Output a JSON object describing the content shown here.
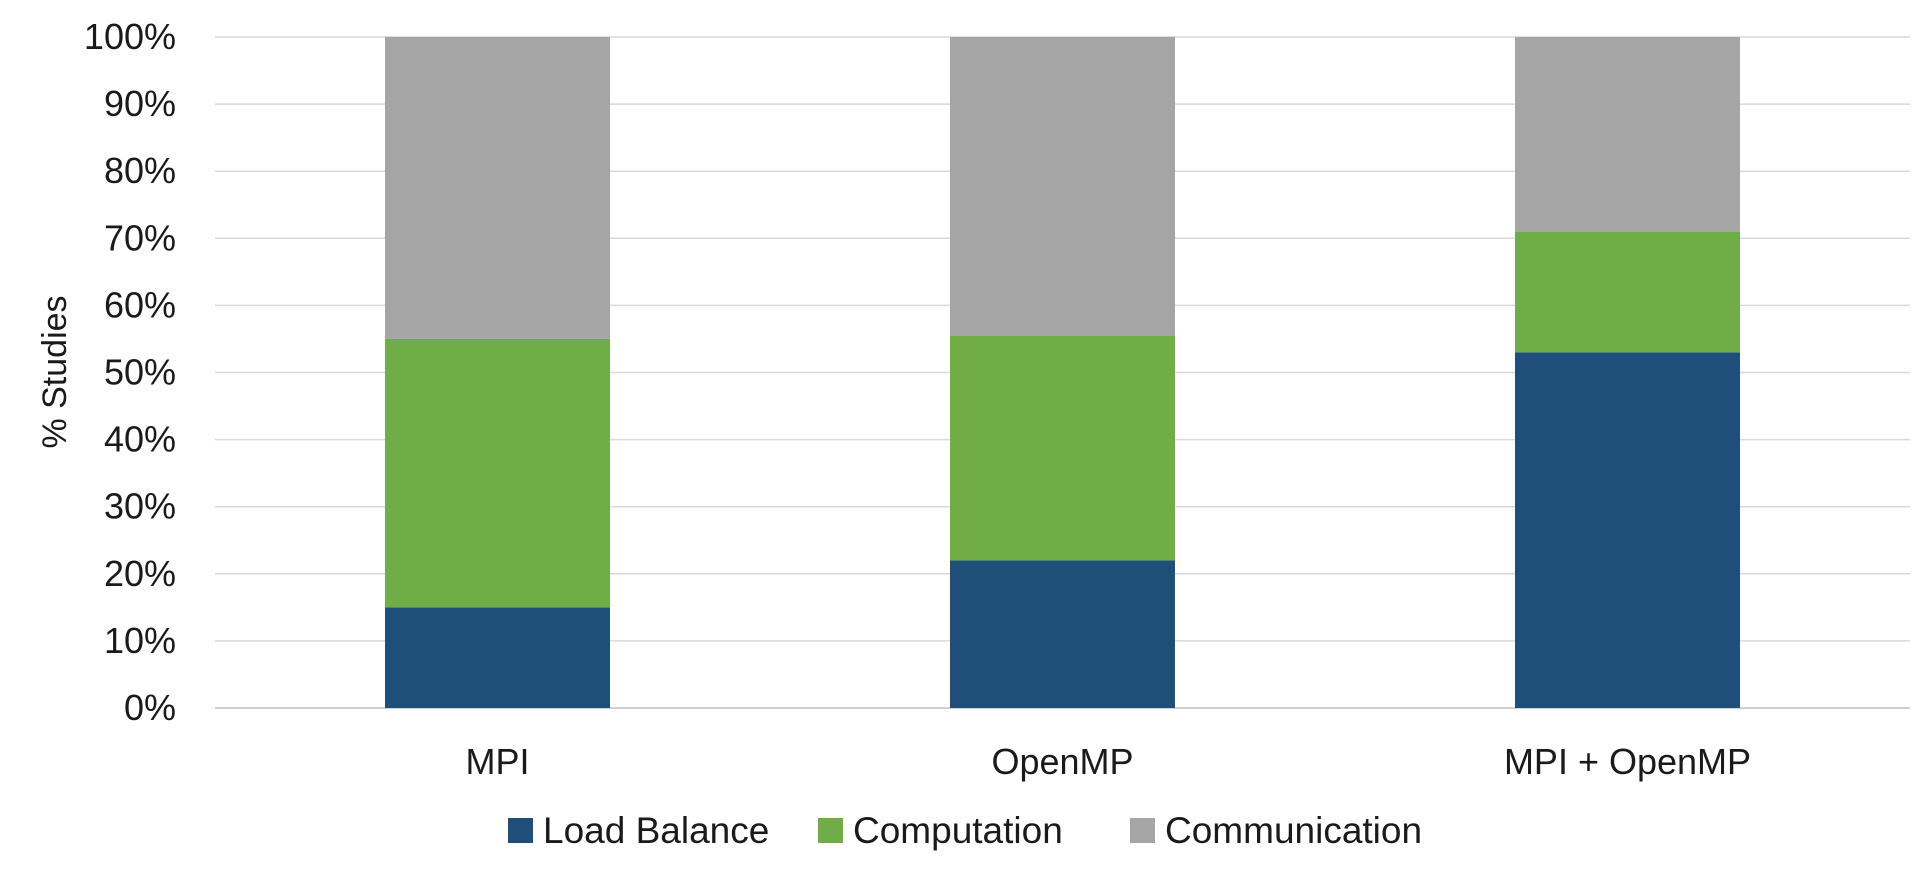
{
  "chart_data": {
    "type": "bar",
    "stacked": true,
    "title": "",
    "xlabel": "",
    "ylabel": "% Studies",
    "ylim": [
      0,
      100
    ],
    "y_ticks": [
      "0%",
      "10%",
      "20%",
      "30%",
      "40%",
      "50%",
      "60%",
      "70%",
      "80%",
      "90%",
      "100%"
    ],
    "y_tick_values": [
      0,
      10,
      20,
      30,
      40,
      50,
      60,
      70,
      80,
      90,
      100
    ],
    "categories": [
      "MPI",
      "OpenMP",
      "MPI + OpenMP"
    ],
    "series": [
      {
        "name": "Load Balance",
        "color": "#1f4e79",
        "values": [
          15,
          22,
          53
        ]
      },
      {
        "name": "Computation",
        "color": "#70ad47",
        "values": [
          40,
          33.5,
          18
        ]
      },
      {
        "name": "Communication",
        "color": "#a5a5a5",
        "values": [
          45,
          44.5,
          29
        ]
      }
    ],
    "grid": true,
    "legend_position": "bottom"
  }
}
